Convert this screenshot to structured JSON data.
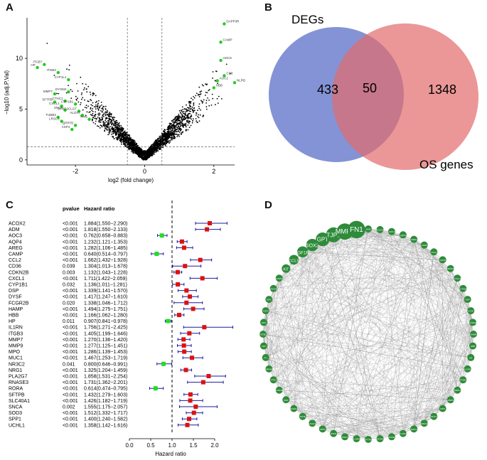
{
  "panels": {
    "a": "A",
    "b": "B",
    "c": "C",
    "d": "D"
  },
  "volcano": {
    "xlabel": "log2 (fold change)",
    "ylabel": "−log10 (adj.P.Val)",
    "xticks": [
      "-2",
      "0",
      "2"
    ],
    "yticks": [
      "0",
      "5",
      "10"
    ],
    "point_color": "#000000",
    "highlight_color": "#22cc22",
    "labeled_genes": [
      {
        "name": "HP",
        "fc": -3.1,
        "p": 9.1
      },
      {
        "name": "ITGB7",
        "fc": -2.9,
        "p": 9.4
      },
      {
        "name": "ITGB3",
        "fc": -2.5,
        "p": 8.6
      },
      {
        "name": "CYP1L1",
        "fc": -2.2,
        "p": 7.9
      },
      {
        "name": "MMP7",
        "fc": -2.6,
        "p": 6.5
      },
      {
        "name": "DYSM4",
        "fc": -2.2,
        "p": 6.7
      },
      {
        "name": "SFTPB",
        "fc": -2.6,
        "p": 5.7
      },
      {
        "name": "CTHC1",
        "fc": -2.3,
        "p": 5.8
      },
      {
        "name": "CXCL1",
        "fc": -2.4,
        "p": 5.3
      },
      {
        "name": "CYP1B1",
        "fc": -2.0,
        "p": 5.5
      },
      {
        "name": "SNCA",
        "fc": -2.3,
        "p": 4.9
      },
      {
        "name": "SPOD2CLGT",
        "fc": -1.9,
        "p": 4.8
      },
      {
        "name": "ALOX7",
        "fc": -1.8,
        "p": 4.4
      },
      {
        "name": "TUBB3",
        "fc": -2.5,
        "p": 4.2
      },
      {
        "name": "PPN",
        "fc": -1.6,
        "p": 4.0
      },
      {
        "name": "LRSC3",
        "fc": -2.4,
        "p": 3.8
      },
      {
        "name": "QPRTB",
        "fc": -2.0,
        "p": 3.4
      },
      {
        "name": "ASP4",
        "fc": -2.1,
        "p": 3.0
      },
      {
        "name": "DAPP3R",
        "fc": 2.3,
        "p": 13.4
      },
      {
        "name": "CAMP",
        "fc": 2.2,
        "p": 11.6
      },
      {
        "name": "ADCS",
        "fc": 2.2,
        "p": 9.8
      },
      {
        "name": "CD8",
        "fc": 2.3,
        "p": 8.3
      },
      {
        "name": "AOC2",
        "fc": 2.1,
        "p": 7.8
      },
      {
        "name": "NLRDN",
        "fc": 2.6,
        "p": 7.6
      },
      {
        "name": "HBB",
        "fc": 2.0,
        "p": 7.1
      }
    ]
  },
  "venn": {
    "left_label": "DEGs",
    "right_label": "OS genes",
    "left_only": "433",
    "overlap": "50",
    "right_only": "1348",
    "left_color": "#5b6fc7",
    "right_color": "#e36b6b"
  },
  "forest": {
    "col_pvalue": "pvalue",
    "col_hr": "Hazard ratio",
    "xlabel": "Hazard ratio",
    "xticks": [
      "0.0",
      "0.5",
      "1.0",
      "1.5",
      "2.0"
    ],
    "up_color": "#dd1111",
    "down_color": "#22dd22",
    "ci_color": "#1a1aa0",
    "rows": [
      {
        "gene": "ACOX2",
        "p": "<0.001",
        "hr_text": "1.884(1.550−2.290)",
        "hr": 1.884,
        "lo": 1.55,
        "hi": 2.29
      },
      {
        "gene": "ADM",
        "p": "<0.001",
        "hr_text": "1.818(1.550−2.133)",
        "hr": 1.818,
        "lo": 1.55,
        "hi": 2.133
      },
      {
        "gene": "AOC3",
        "p": "<0.001",
        "hr_text": "0.762(0.658−0.883)",
        "hr": 0.762,
        "lo": 0.658,
        "hi": 0.883
      },
      {
        "gene": "AQP4",
        "p": "<0.001",
        "hr_text": "1.232(1.121−1.353)",
        "hr": 1.232,
        "lo": 1.121,
        "hi": 1.353
      },
      {
        "gene": "AREG",
        "p": "<0.001",
        "hr_text": "1.282(1.106−1.485)",
        "hr": 1.282,
        "lo": 1.106,
        "hi": 1.485
      },
      {
        "gene": "CAMP",
        "p": "<0.001",
        "hr_text": "0.640(0.514−0.797)",
        "hr": 0.64,
        "lo": 0.514,
        "hi": 0.797
      },
      {
        "gene": "CCL2",
        "p": "<0.001",
        "hr_text": "1.662(1.432−1.928)",
        "hr": 1.662,
        "lo": 1.432,
        "hi": 1.928
      },
      {
        "gene": "CD36",
        "p": "0.039",
        "hr_text": "1.304(1.013−1.678)",
        "hr": 1.304,
        "lo": 1.013,
        "hi": 1.678
      },
      {
        "gene": "CDKN2B",
        "p": "0.003",
        "hr_text": "1.132(1.043−1.228)",
        "hr": 1.132,
        "lo": 1.043,
        "hi": 1.228
      },
      {
        "gene": "CXCL1",
        "p": "<0.001",
        "hr_text": "1.711(1.422−2.059)",
        "hr": 1.711,
        "lo": 1.422,
        "hi": 2.059
      },
      {
        "gene": "CYP1B1",
        "p": "0.032",
        "hr_text": "1.136(1.011−1.281)",
        "hr": 1.136,
        "lo": 1.011,
        "hi": 1.281
      },
      {
        "gene": "DSP",
        "p": "<0.001",
        "hr_text": "1.339(1.141−1.570)",
        "hr": 1.339,
        "lo": 1.141,
        "hi": 1.57
      },
      {
        "gene": "DYSF",
        "p": "<0.001",
        "hr_text": "1.417(1.247−1.610)",
        "hr": 1.417,
        "lo": 1.247,
        "hi": 1.61
      },
      {
        "gene": "FCGR2B",
        "p": "0.020",
        "hr_text": "1.338(1.046−1.712)",
        "hr": 1.338,
        "lo": 1.046,
        "hi": 1.712
      },
      {
        "gene": "HAMP",
        "p": "<0.001",
        "hr_text": "1.494(1.275−1.751)",
        "hr": 1.494,
        "lo": 1.275,
        "hi": 1.751
      },
      {
        "gene": "HBB",
        "p": "<0.001",
        "hr_text": "1.166(1.062−1.280)",
        "hr": 1.166,
        "lo": 1.062,
        "hi": 1.28
      },
      {
        "gene": "HP",
        "p": "0.011",
        "hr_text": "0.907(0.841−0.978)",
        "hr": 0.907,
        "lo": 0.841,
        "hi": 0.978
      },
      {
        "gene": "IL1RN",
        "p": "<0.001",
        "hr_text": "1.756(1.271−2.425)",
        "hr": 1.756,
        "lo": 1.271,
        "hi": 2.425
      },
      {
        "gene": "ITGB3",
        "p": "<0.001",
        "hr_text": "1.405(1.199−1.646)",
        "hr": 1.405,
        "lo": 1.199,
        "hi": 1.646
      },
      {
        "gene": "MMP7",
        "p": "<0.001",
        "hr_text": "1.270(1.136−1.420)",
        "hr": 1.27,
        "lo": 1.136,
        "hi": 1.42
      },
      {
        "gene": "MMP9",
        "p": "<0.001",
        "hr_text": "1.277(1.125−1.451)",
        "hr": 1.277,
        "lo": 1.125,
        "hi": 1.451
      },
      {
        "gene": "MPO",
        "p": "<0.001",
        "hr_text": "1.286(1.139−1.453)",
        "hr": 1.286,
        "lo": 1.139,
        "hi": 1.453
      },
      {
        "gene": "MUC1",
        "p": "<0.001",
        "hr_text": "1.467(1.253−1.719)",
        "hr": 1.467,
        "lo": 1.253,
        "hi": 1.719
      },
      {
        "gene": "NR3C2",
        "p": "0.041",
        "hr_text": "0.800(0.646−0.991)",
        "hr": 0.8,
        "lo": 0.646,
        "hi": 0.991
      },
      {
        "gene": "NRG1",
        "p": "<0.001",
        "hr_text": "1.325(1.204−1.459)",
        "hr": 1.325,
        "lo": 1.204,
        "hi": 1.459
      },
      {
        "gene": "PLA2G7",
        "p": "<0.001",
        "hr_text": "1.858(1.531−2.254)",
        "hr": 1.858,
        "lo": 1.531,
        "hi": 2.254
      },
      {
        "gene": "RNASE3",
        "p": "<0.001",
        "hr_text": "1.731(1.362−2.201)",
        "hr": 1.731,
        "lo": 1.362,
        "hi": 2.201
      },
      {
        "gene": "RORA",
        "p": "<0.001",
        "hr_text": "0.614(0.474−0.795)",
        "hr": 0.614,
        "lo": 0.474,
        "hi": 0.795
      },
      {
        "gene": "SFTPB",
        "p": "<0.001",
        "hr_text": "1.432(1.279−1.603)",
        "hr": 1.432,
        "lo": 1.279,
        "hi": 1.603
      },
      {
        "gene": "SLC40A1",
        "p": "<0.001",
        "hr_text": "1.426(1.182−1.719)",
        "hr": 1.426,
        "lo": 1.182,
        "hi": 1.719
      },
      {
        "gene": "SNCA",
        "p": "0.002",
        "hr_text": "1.555(1.175−2.057)",
        "hr": 1.555,
        "lo": 1.175,
        "hi": 2.057
      },
      {
        "gene": "SOD3",
        "p": "<0.001",
        "hr_text": "1.512(1.332−1.717)",
        "hr": 1.512,
        "lo": 1.332,
        "hi": 1.717
      },
      {
        "gene": "SPP1",
        "p": "<0.001",
        "hr_text": "1.400(1.240−1.582)",
        "hr": 1.4,
        "lo": 1.24,
        "hi": 1.582
      },
      {
        "gene": "UCHL1",
        "p": "<0.001",
        "hr_text": "1.358(1.142−1.616)",
        "hr": 1.358,
        "lo": 1.142,
        "hi": 1.616
      }
    ]
  },
  "network": {
    "node_color": "#2e8b3a",
    "edge_color": "#888888",
    "nodes": [
      "ADM",
      "ACOX2",
      "AOC3",
      "AQP4",
      "AREG",
      "CAMP",
      "CCL2",
      "CD36",
      "CDKN2B",
      "CXCL1",
      "CYP1B1",
      "DSP",
      "DYSF",
      "FCGR2B",
      "HAMP",
      "HBB",
      "HP",
      "IL1RN",
      "ITGB3",
      "MMP7",
      "MMP9",
      "MPO",
      "MUC1",
      "NR3C2",
      "NRG1",
      "PLA2G7",
      "RNASE3",
      "RORA",
      "SFTPB",
      "SLC40A1",
      "SNCA",
      "SOD3",
      "SPP1",
      "UCHL1",
      "APOE",
      "NFE2L2",
      "KDR",
      "PDGFRB",
      "TFRC",
      "SERPINE1",
      "FTL",
      "LEP",
      "TGFB1",
      "EPO",
      "FGF2",
      "IGF1",
      "VEGFA",
      "STAT3",
      "KIT",
      "CCL5",
      "IGF1R",
      "SOX2",
      "GPT",
      "TJP1",
      "MMP2",
      "FN1"
    ],
    "big_labels": [
      "KIT",
      "CCL5",
      "IGF1R",
      "SOX2",
      "GPT",
      "TJP1",
      "MMP2",
      "FN1"
    ],
    "small_labels": [
      "TTP",
      "MPO",
      "GPO",
      "EPO",
      "CD8",
      "PTGS",
      "LEP",
      "IL6"
    ]
  },
  "chart_data": [
    {
      "type": "scatter",
      "title": "",
      "xlabel": "log2 (fold change)",
      "ylabel": "−log10 (adj.P.Val)",
      "xlim": [
        -3.4,
        2.6
      ],
      "ylim": [
        -0.5,
        14
      ],
      "thresholds": {
        "fc": [
          -0.5,
          0.5
        ],
        "p": 1.3
      }
    },
    {
      "type": "bar",
      "title": "",
      "xlabel": "Hazard ratio",
      "xlim": [
        0,
        2.1
      ],
      "reference_line": 1.0
    }
  ]
}
